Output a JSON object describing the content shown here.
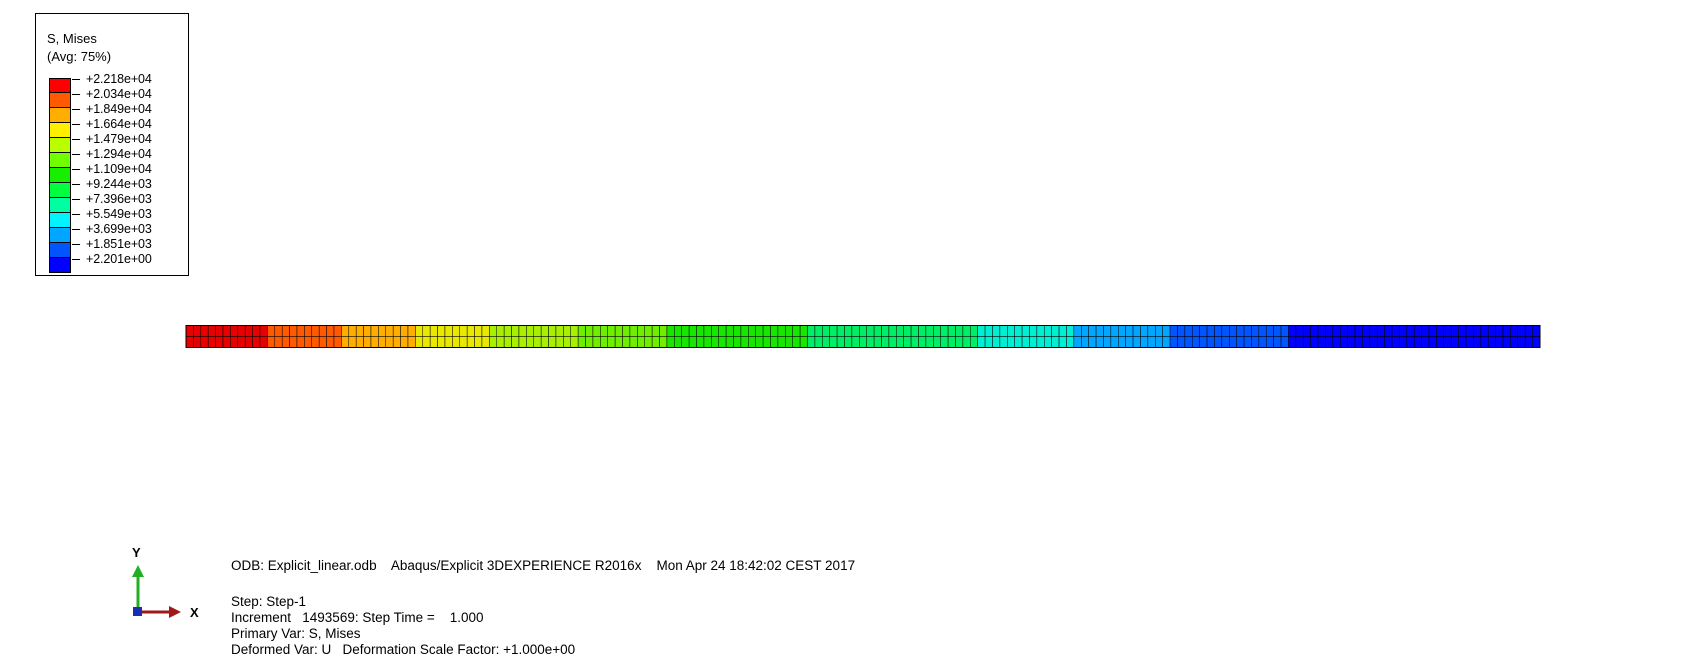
{
  "legend": {
    "title": "S, Mises",
    "subtitle": "(Avg: 75%)",
    "levels": [
      {
        "label": "+2.218e+04",
        "color": "#ff0000"
      },
      {
        "label": "+2.034e+04",
        "color": "#ff5a00"
      },
      {
        "label": "+1.849e+04",
        "color": "#ffae00"
      },
      {
        "label": "+1.664e+04",
        "color": "#ffee00"
      },
      {
        "label": "+1.479e+04",
        "color": "#b9ff00"
      },
      {
        "label": "+1.294e+04",
        "color": "#6fff00"
      },
      {
        "label": "+1.109e+04",
        "color": "#18ee00"
      },
      {
        "label": "+9.244e+03",
        "color": "#00ff3f"
      },
      {
        "label": "+7.396e+03",
        "color": "#00ffa2"
      },
      {
        "label": "+5.549e+03",
        "color": "#00f4ff"
      },
      {
        "label": "+3.699e+03",
        "color": "#00a6ff"
      },
      {
        "label": "+1.851e+03",
        "color": "#0055ff"
      },
      {
        "label": "+2.201e+00",
        "color": "#0000ff"
      }
    ]
  },
  "mesh": {
    "rows": 2,
    "bands": [
      {
        "color": "#e60000",
        "elements": 11
      },
      {
        "color": "#ff5a00",
        "elements": 10
      },
      {
        "color": "#ffae00",
        "elements": 10
      },
      {
        "color": "#e8e800",
        "elements": 10
      },
      {
        "color": "#a8f000",
        "elements": 12
      },
      {
        "color": "#6fee00",
        "elements": 12
      },
      {
        "color": "#18e600",
        "elements": 19
      },
      {
        "color": "#00ee66",
        "elements": 23
      },
      {
        "color": "#00eed2",
        "elements": 13
      },
      {
        "color": "#00a6ff",
        "elements": 13
      },
      {
        "color": "#0055ff",
        "elements": 16
      },
      {
        "color": "#0000ff",
        "elements": 34
      }
    ]
  },
  "triad": {
    "y_label": "Y",
    "x_label": "X"
  },
  "info": {
    "odb_line": "ODB: Explicit_linear.odb    Abaqus/Explicit 3DEXPERIENCE R2016x    Mon Apr 24 18:42:02 CEST 2017",
    "step_line": "Step: Step-1",
    "increment_line": "Increment   1493569: Step Time =    1.000",
    "primary_var_line": "Primary Var: S, Mises",
    "deformed_var_line": "Deformed Var: U   Deformation Scale Factor: +1.000e+00"
  }
}
